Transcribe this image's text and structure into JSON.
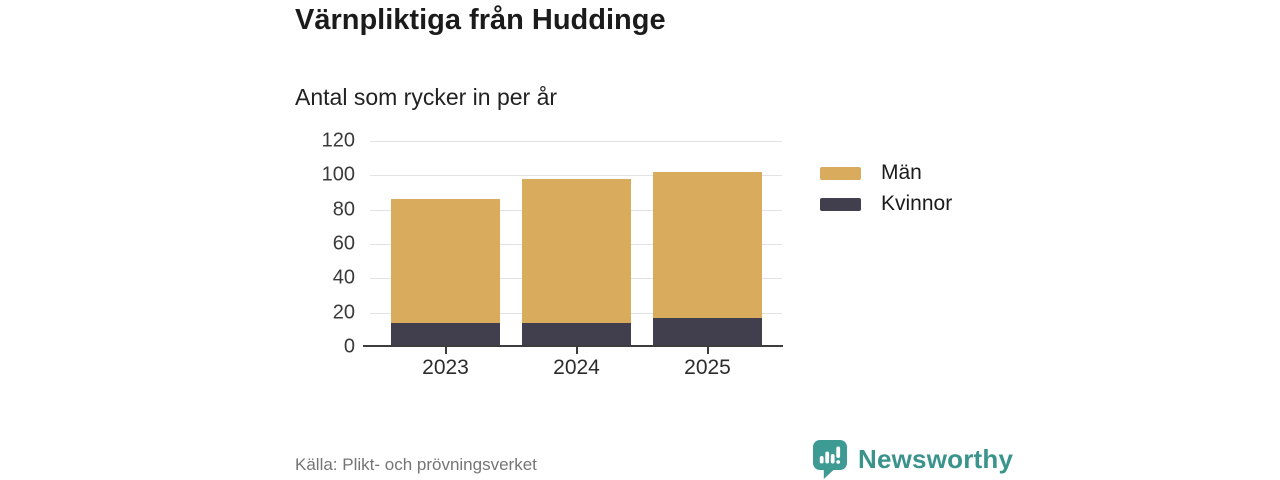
{
  "header": {
    "title": "Värnpliktiga från Huddinge",
    "subtitle": "Antal som rycker in per år"
  },
  "chart_data": {
    "type": "bar",
    "stacked": true,
    "title": "Värnpliktiga från Huddinge",
    "subtitle": "Antal som rycker in per år",
    "categories": [
      "2023",
      "2024",
      "2025"
    ],
    "series": [
      {
        "name": "Kvinnor",
        "color": "#413F4D",
        "values": [
          14,
          14,
          17
        ]
      },
      {
        "name": "Män",
        "color": "#D9AB5C",
        "values": [
          72,
          84,
          85
        ]
      }
    ],
    "stack_totals": [
      86,
      98,
      102
    ],
    "xlabel": "",
    "ylabel": "",
    "ylim": [
      0,
      120
    ],
    "yticks": [
      0,
      20,
      40,
      60,
      80,
      100,
      120
    ],
    "grid": true,
    "legend_position": "right",
    "legend_order": [
      "Män",
      "Kvinnor"
    ],
    "source": "Källa: Plikt- och prövningsverket"
  },
  "legend": {
    "items": [
      {
        "label": "Män",
        "color": "#D9AB5C"
      },
      {
        "label": "Kvinnor",
        "color": "#413F4D"
      }
    ]
  },
  "footer": {
    "source": "Källa: Plikt- och prövningsverket",
    "brand": "Newsworthy",
    "brand_color": "#3A948C",
    "icon_color": "#3D9B93",
    "icon": "bar-chart-speech-bubble-icon"
  }
}
